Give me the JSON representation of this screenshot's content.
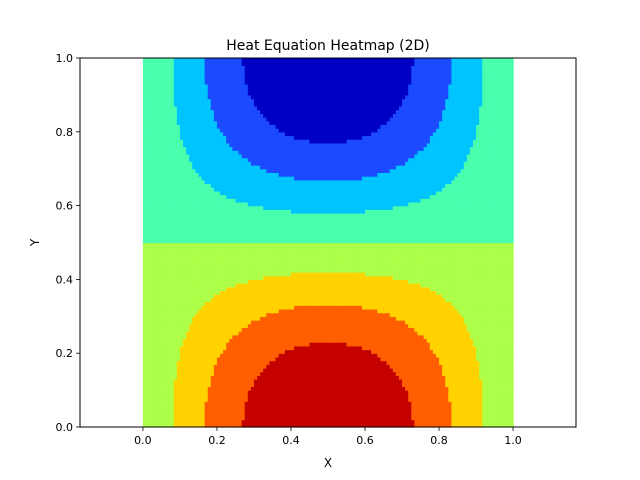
{
  "chart_data": {
    "type": "heatmap",
    "subtype": "filled-contour",
    "title": "Heat Equation Heatmap (2D)",
    "xlabel": "X",
    "ylabel": "Y",
    "xlim": [
      -0.17,
      1.17
    ],
    "ylim": [
      0.0,
      1.0
    ],
    "x_ticks": [
      "0.0",
      "0.2",
      "0.4",
      "0.6",
      "0.8",
      "1.0"
    ],
    "y_ticks": [
      "0.0",
      "0.2",
      "0.4",
      "0.6",
      "0.8",
      "1.0"
    ],
    "data_domain": {
      "x": [
        0.0,
        1.0
      ],
      "y": [
        0.0,
        1.0
      ]
    },
    "field": "sin(pi*x) * cos(pi*y)",
    "colormap": "jet",
    "levels": [
      -1.0,
      -0.75,
      -0.5,
      -0.25,
      0.0,
      0.25,
      0.5,
      0.75,
      1.0
    ],
    "level_colors": [
      "#0000c4",
      "#1c4aff",
      "#00c4ff",
      "#49ffad",
      "#adff49",
      "#ffd200",
      "#ff5f00",
      "#c40000"
    ],
    "grid": false,
    "legend": "none"
  }
}
